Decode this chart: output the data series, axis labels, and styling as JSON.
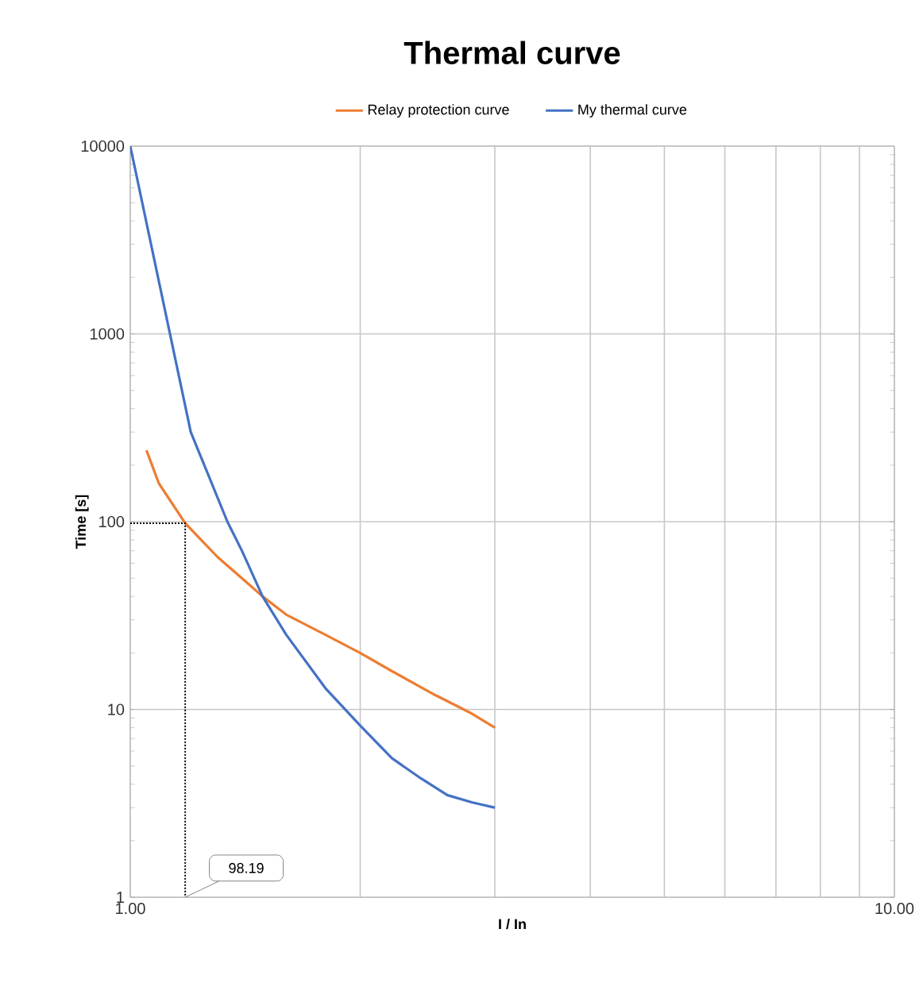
{
  "chart_data": {
    "type": "line",
    "title": "Thermal curve",
    "xlabel": "I / In",
    "ylabel": "Time [s]",
    "log": "xy",
    "grid": true,
    "legend": "top",
    "xlim": [
      1,
      10
    ],
    "ylim": [
      1,
      10000
    ],
    "xticks": [
      {
        "value": 1,
        "label": "1.00"
      },
      {
        "value": 2,
        "label": null
      },
      {
        "value": 3,
        "label": null
      },
      {
        "value": 4,
        "label": null
      },
      {
        "value": 5,
        "label": null
      },
      {
        "value": 6,
        "label": null
      },
      {
        "value": 7,
        "label": null
      },
      {
        "value": 8,
        "label": null
      },
      {
        "value": 9,
        "label": null
      },
      {
        "value": 10,
        "label": "10.00"
      }
    ],
    "yticks": [
      1,
      10,
      100,
      1000,
      10000
    ],
    "series": [
      {
        "name": "Relay protection curve",
        "color": "#ed7d31",
        "x": [
          1.05,
          1.09,
          1.18,
          1.3,
          1.4,
          1.49,
          1.6,
          1.8,
          2,
          2.2,
          2.5,
          2.8,
          3
        ],
        "values": [
          240,
          160,
          98.19,
          65,
          50,
          40,
          32,
          25,
          20,
          16,
          12,
          9.5,
          8
        ]
      },
      {
        "name": "My thermal curve",
        "color": "#4472c4",
        "x": [
          1,
          1.2,
          1.34,
          1.4,
          1.49,
          1.6,
          1.8,
          2,
          2.2,
          2.4,
          2.6,
          2.8,
          3
        ],
        "values": [
          10000,
          300,
          100,
          70,
          40,
          25,
          13,
          8.2,
          5.5,
          4.3,
          3.5,
          3.2,
          3
        ]
      },
      {
        "color": "#000000",
        "line_style": "dotted",
        "x": [
          1,
          1.18,
          1.18
        ],
        "values": [
          98.19,
          98.19,
          1
        ]
      }
    ],
    "annotations": [
      {
        "text": "98.19",
        "x": 1.18,
        "y": 1
      }
    ]
  }
}
